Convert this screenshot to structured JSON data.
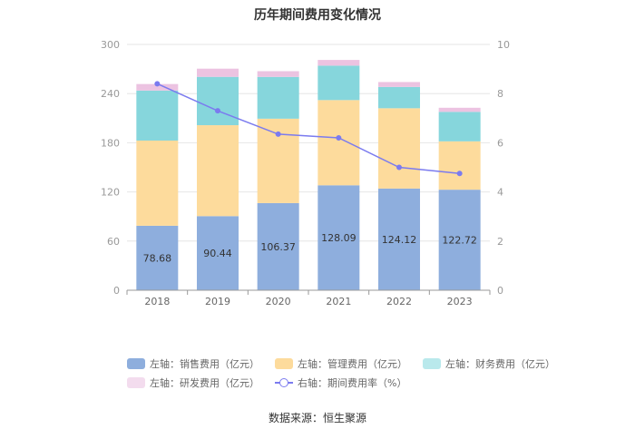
{
  "chart_data": {
    "type": "bar",
    "stacked": true,
    "title": "历年期间费用变化情况",
    "categories": [
      "2018",
      "2019",
      "2020",
      "2021",
      "2022",
      "2023"
    ],
    "y_left": {
      "min": 0,
      "max": 300,
      "ticks": [
        "0",
        "60",
        "120",
        "180",
        "240",
        "300"
      ]
    },
    "y_right": {
      "min": 0,
      "max": 10,
      "ticks": [
        "0",
        "2",
        "4",
        "6",
        "8",
        "10"
      ]
    },
    "series": [
      {
        "name": "左轴：销售费用（亿元）",
        "axis": "left",
        "color": "#8eaedd",
        "values": [
          78.68,
          90.44,
          106.37,
          128.09,
          124.12,
          122.72
        ],
        "labels": [
          "78.68",
          "90.44",
          "106.37",
          "128.09",
          "124.12",
          "122.72"
        ]
      },
      {
        "name": "左轴：管理费用（亿元）",
        "axis": "left",
        "color": "#fddb9c",
        "values": [
          104.0,
          111.0,
          103.0,
          104.0,
          98.0,
          59.0
        ]
      },
      {
        "name": "左轴：财务费用（亿元）",
        "axis": "left",
        "color": "#86d6dc",
        "values": [
          61.0,
          59.0,
          51.0,
          42.0,
          26.0,
          36.0
        ]
      },
      {
        "name": "左轴：研发费用（亿元）",
        "axis": "left",
        "color": "#ecc3e1",
        "values": [
          8.0,
          10.0,
          7.0,
          7.0,
          6.0,
          5.0
        ]
      },
      {
        "name": "右轴：期间费用率（%）",
        "axis": "right",
        "type": "line",
        "color": "#7b7bef",
        "values": [
          8.4,
          7.3,
          6.35,
          6.2,
          5.0,
          4.75
        ]
      }
    ]
  },
  "source": "数据来源：恒生聚源"
}
